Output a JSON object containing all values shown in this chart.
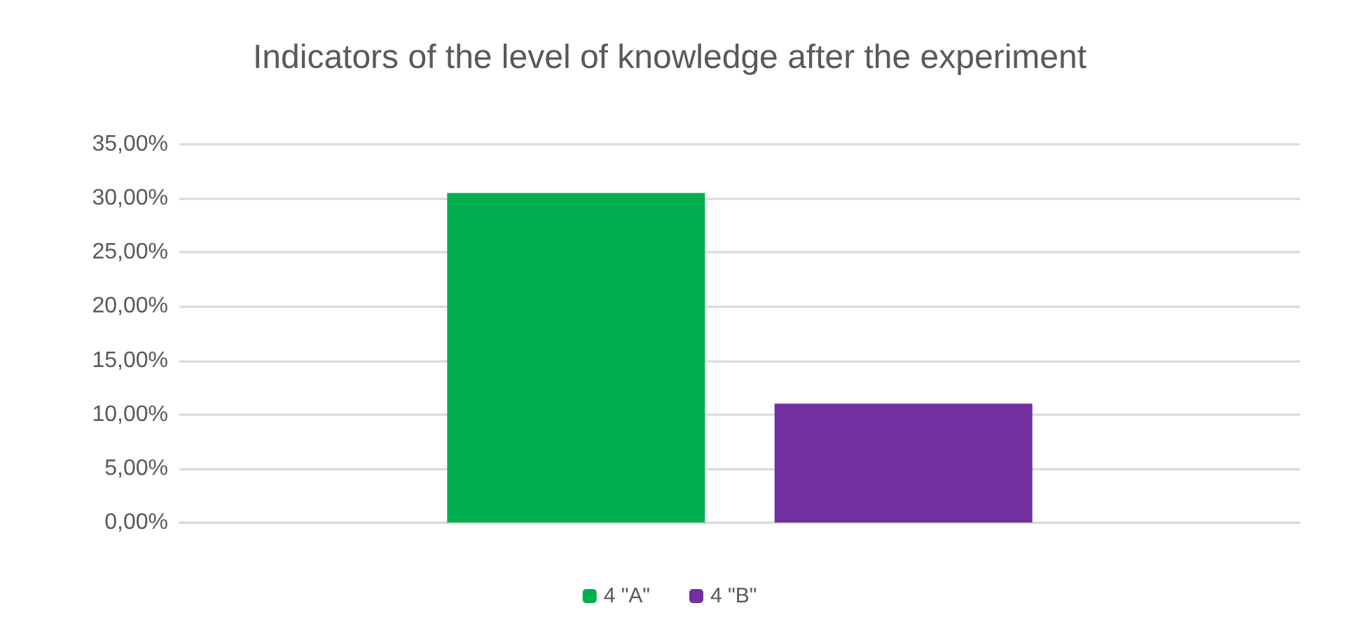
{
  "chart_data": {
    "type": "bar",
    "title": "Indicators of the level of knowledge after the experiment",
    "categories": [
      null
    ],
    "series": [
      {
        "name": "4 \"A\"",
        "color": "#00b050",
        "values": [
          30.5
        ]
      },
      {
        "name": "4 \"B\"",
        "color": "#7030a0",
        "values": [
          11.0
        ]
      }
    ],
    "ylim": [
      0,
      35
    ],
    "yticks": [
      {
        "value": 0,
        "label": "0,00%"
      },
      {
        "value": 5,
        "label": "5,00%"
      },
      {
        "value": 10,
        "label": "10,00%"
      },
      {
        "value": 15,
        "label": "15,00%"
      },
      {
        "value": 20,
        "label": "20,00%"
      },
      {
        "value": 25,
        "label": "25,00%"
      },
      {
        "value": 30,
        "label": "30,00%"
      },
      {
        "value": 35,
        "label": "35,00%"
      }
    ],
    "grid": "y",
    "legend": "bottom"
  }
}
